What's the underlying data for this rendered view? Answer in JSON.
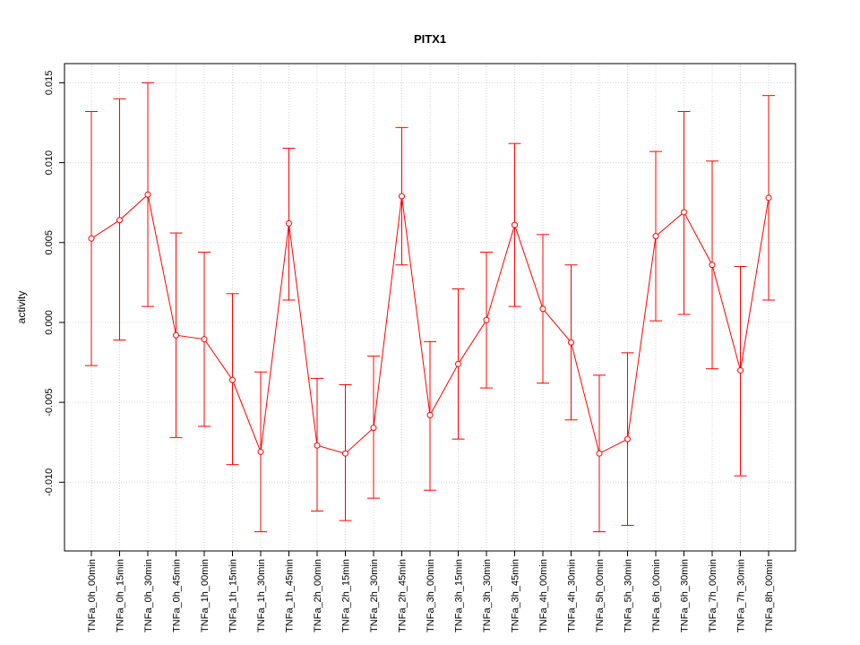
{
  "chart_data": {
    "type": "line",
    "title": "PITX1",
    "xlabel": "",
    "ylabel": "activity",
    "ylim": [
      -0.0143,
      0.0162
    ],
    "yticks": [
      -0.01,
      -0.005,
      0.0,
      0.005,
      0.01,
      0.015
    ],
    "ytick_labels": [
      "-0.010",
      "-0.005",
      "0.000",
      "0.005",
      "0.010",
      "0.015"
    ],
    "grid": true,
    "color": "#ff0000",
    "categories": [
      "TNFa_0h_00min",
      "TNFa_0h_15min",
      "TNFa_0h_30min",
      "TNFa_0h_45min",
      "TNFa_1h_00min",
      "TNFa_1h_15min",
      "TNFa_1h_30min",
      "TNFa_1h_45min",
      "TNFa_2h_00min",
      "TNFa_2h_15min",
      "TNFa_2h_30min",
      "TNFa_2h_45min",
      "TNFa_3h_00min",
      "TNFa_3h_15min",
      "TNFa_3h_30min",
      "TNFa_3h_45min",
      "TNFa_4h_00min",
      "TNFa_4h_30min",
      "TNFa_5h_00min",
      "TNFa_5h_30min",
      "TNFa_6h_00min",
      "TNFa_6h_30min",
      "TNFa_7h_00min",
      "TNFa_7h_30min",
      "TNFa_8h_00min"
    ],
    "values": [
      0.00525,
      0.0064,
      0.008,
      -0.0008,
      -0.00105,
      -0.0036,
      -0.0081,
      0.0062,
      -0.0077,
      -0.0082,
      -0.0066,
      0.0079,
      -0.0058,
      -0.0026,
      0.00015,
      0.0061,
      0.00085,
      -0.00125,
      -0.0082,
      -0.0073,
      0.0054,
      0.0069,
      0.0036,
      -0.003,
      0.0078
    ],
    "upper": [
      0.0132,
      0.014,
      0.015,
      0.0056,
      0.0044,
      0.0018,
      -0.0031,
      0.0109,
      -0.0035,
      -0.0039,
      -0.0021,
      0.0122,
      -0.0012,
      0.0021,
      0.0044,
      0.0112,
      0.0055,
      0.0036,
      -0.0033,
      -0.0019,
      0.0107,
      0.0132,
      0.0101,
      0.0035,
      0.0142
    ],
    "lower": [
      -0.0027,
      -0.0011,
      0.001,
      -0.0072,
      -0.0065,
      -0.0089,
      -0.0131,
      0.0014,
      -0.0118,
      -0.0124,
      -0.011,
      0.0036,
      -0.0105,
      -0.0073,
      -0.0041,
      0.001,
      -0.0038,
      -0.0061,
      -0.0131,
      -0.0127,
      0.0001,
      0.0005,
      -0.0029,
      -0.0096,
      0.0014
    ]
  }
}
